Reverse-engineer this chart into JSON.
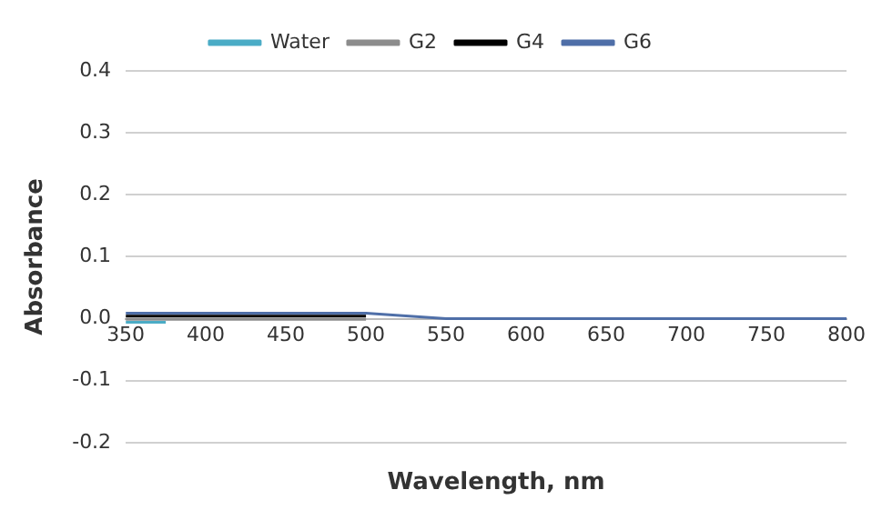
{
  "chart_data": {
    "type": "line",
    "xlabel": "Wavelength, nm",
    "ylabel": "Absorbance",
    "x": [
      350,
      400,
      450,
      500,
      550,
      600,
      650,
      700,
      750,
      800
    ],
    "series": [
      {
        "name": "Water",
        "color": "#4bacc6",
        "x": [
          350,
          375
        ],
        "values": [
          -0.006,
          -0.006
        ]
      },
      {
        "name": "G2",
        "color": "#8c8c8c",
        "x": [
          350,
          400,
          450,
          500
        ],
        "values": [
          -0.001,
          -0.001,
          -0.001,
          -0.001
        ]
      },
      {
        "name": "G4",
        "color": "#000000",
        "x": [
          350,
          400,
          450,
          500
        ],
        "values": [
          0.004,
          0.004,
          0.004,
          0.004
        ]
      },
      {
        "name": "G6",
        "color": "#4f6fa8",
        "values": [
          0.009,
          0.009,
          0.009,
          0.009,
          0.0,
          0.0,
          0.0,
          0.0,
          0.0,
          0.0
        ]
      }
    ],
    "xlim": [
      350,
      800
    ],
    "xticks": [
      350,
      400,
      450,
      500,
      550,
      600,
      650,
      700,
      750,
      800
    ],
    "ylim": [
      -0.2,
      0.4
    ],
    "yticks": [
      {
        "value": -0.2,
        "label": "-0.2"
      },
      {
        "value": -0.1,
        "label": "-0.1"
      },
      {
        "value": 0,
        "label": "0.0"
      },
      {
        "value": 0.1,
        "label": "0.1"
      },
      {
        "value": 0.2,
        "label": "0.2"
      },
      {
        "value": 0.3,
        "label": "0.3"
      },
      {
        "value": 0.4,
        "label": "0.4"
      }
    ],
    "grid": "y",
    "legend": "top",
    "marker": "none",
    "line_style": "solid"
  }
}
